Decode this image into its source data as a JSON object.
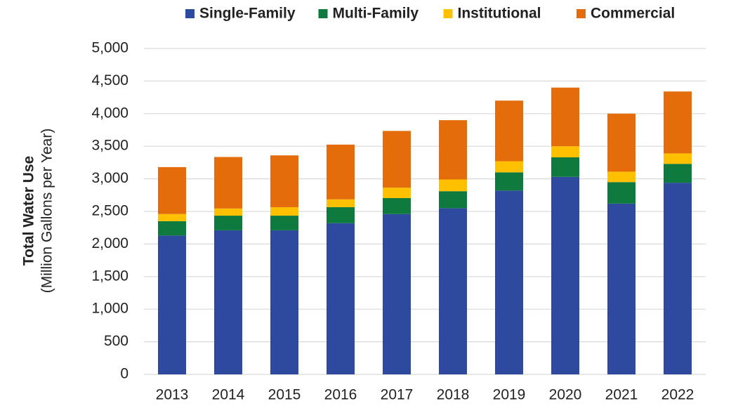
{
  "chart_data": {
    "type": "stacked_bar",
    "y_label": "Total Water Use",
    "y_sublabel": "(Million Gallons per Year)",
    "categories": [
      "2013",
      "2014",
      "2015",
      "2016",
      "2017",
      "2018",
      "2019",
      "2020",
      "2021",
      "2022"
    ],
    "series": [
      {
        "name": "Single-Family",
        "color": "#2e4a9e",
        "values": [
          2130,
          2210,
          2210,
          2320,
          2460,
          2550,
          2820,
          3030,
          2620,
          2940
        ]
      },
      {
        "name": "Multi-Family",
        "color": "#0e7a3e",
        "values": [
          220,
          225,
          225,
          245,
          245,
          260,
          280,
          300,
          330,
          290
        ]
      },
      {
        "name": "Institutional",
        "color": "#ffc000",
        "values": [
          110,
          110,
          130,
          120,
          160,
          180,
          170,
          170,
          160,
          160
        ]
      },
      {
        "name": "Commercial",
        "color": "#e46c0a",
        "values": [
          720,
          790,
          795,
          840,
          870,
          910,
          930,
          900,
          890,
          950
        ]
      }
    ],
    "ylim": [
      0,
      5000
    ],
    "yticks": [
      0,
      500,
      {
        "value": 1000,
        "label": "1,000"
      },
      {
        "value": 1500,
        "label": "1,500"
      },
      {
        "value": 2000,
        "label": "2,000"
      },
      {
        "value": 2500,
        "label": "2,500"
      },
      {
        "value": 3000,
        "label": "3,000"
      },
      {
        "value": 3500,
        "label": "3,500"
      },
      {
        "value": 4000,
        "label": "4,000"
      },
      {
        "value": 4500,
        "label": "4,500"
      },
      {
        "value": 5000,
        "label": "5,000"
      }
    ],
    "grid": true,
    "legend": "top"
  }
}
